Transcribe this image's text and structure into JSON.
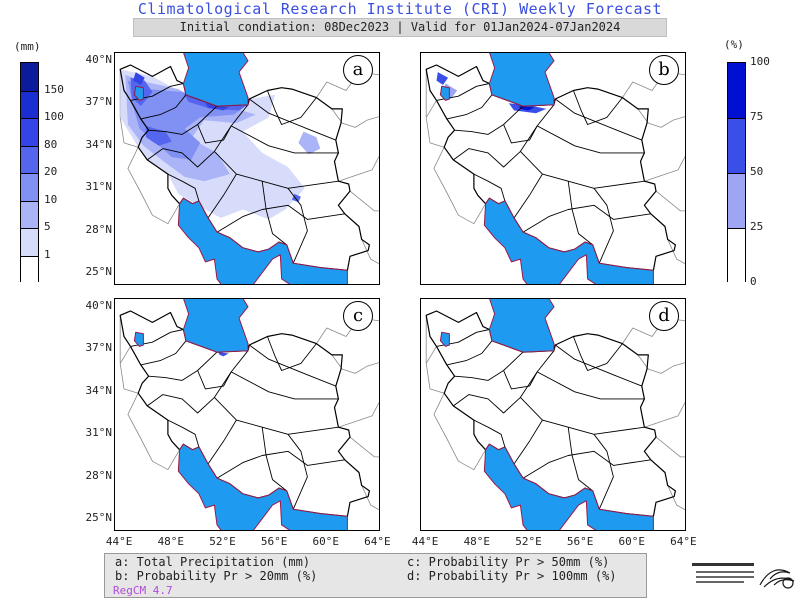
{
  "header": {
    "title": "Climatological Research Institute (CRI) Weekly Forecast",
    "subtitle": "Initial condiation: 08Dec2023 | Valid for 01Jan2024-07Jan2024"
  },
  "precip_colorbar": {
    "unit": "(mm)",
    "ticks": [
      "150",
      "100",
      "80",
      "20",
      "10",
      "5",
      "1"
    ],
    "colors": [
      "#0c1a9c",
      "#1a2ed2",
      "#3345e6",
      "#5566ee",
      "#8090f3",
      "#aab4f7",
      "#d8dcfb",
      "#ffffff"
    ]
  },
  "prob_colorbar": {
    "unit": "(%)",
    "ticks": [
      "100",
      "75",
      "50",
      "25",
      "0"
    ],
    "colors": [
      "#0010d0",
      "#3a4ee8",
      "#9ea6f4",
      "#ffffff"
    ]
  },
  "map": {
    "lat_labels": [
      "40°N",
      "37°N",
      "34°N",
      "31°N",
      "28°N",
      "25°N"
    ],
    "lon_labels": [
      "44°E",
      "48°E",
      "52°E",
      "56°E",
      "60°E",
      "64°E"
    ],
    "water_color": "#1e9bf0",
    "coast_color": "#9b1a4a"
  },
  "panels": [
    {
      "letter": "a"
    },
    {
      "letter": "b"
    },
    {
      "letter": "c"
    },
    {
      "letter": "d"
    }
  ],
  "legend": {
    "a": "a: Total Precipitation (mm)",
    "b": "b: Probability Pr > 20mm (%)",
    "c": "c: Probability Pr > 50mm (%)",
    "d": "d: Probability Pr > 100mm (%)",
    "model": "RegCM 4.7"
  }
}
